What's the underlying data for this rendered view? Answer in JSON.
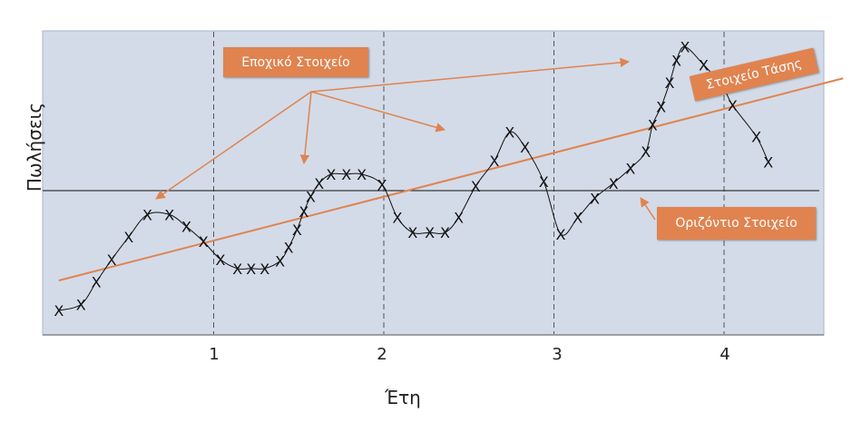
{
  "chart_data": {
    "type": "scatter",
    "xlabel": "Έτη",
    "ylabel": "Πωλήσεις",
    "x_ticks": [
      "1",
      "2",
      "3",
      "4"
    ],
    "marker": "X",
    "grid": "vertical dashed lines at each year",
    "horizontal_line": true,
    "points": [
      {
        "x": 0.09,
        "y": -0.8
      },
      {
        "x": 0.22,
        "y": -0.76
      },
      {
        "x": 0.31,
        "y": -0.61
      },
      {
        "x": 0.4,
        "y": -0.46
      },
      {
        "x": 0.5,
        "y": -0.31
      },
      {
        "x": 0.61,
        "y": -0.16
      },
      {
        "x": 0.74,
        "y": -0.16
      },
      {
        "x": 0.84,
        "y": -0.24
      },
      {
        "x": 0.94,
        "y": -0.34
      },
      {
        "x": 1.04,
        "y": -0.46
      },
      {
        "x": 1.14,
        "y": -0.52
      },
      {
        "x": 1.22,
        "y": -0.52
      },
      {
        "x": 1.3,
        "y": -0.52
      },
      {
        "x": 1.39,
        "y": -0.47
      },
      {
        "x": 1.44,
        "y": -0.38
      },
      {
        "x": 1.49,
        "y": -0.26
      },
      {
        "x": 1.53,
        "y": -0.14
      },
      {
        "x": 1.57,
        "y": -0.04
      },
      {
        "x": 1.62,
        "y": 0.05
      },
      {
        "x": 1.69,
        "y": 0.11
      },
      {
        "x": 1.78,
        "y": 0.11
      },
      {
        "x": 1.87,
        "y": 0.11
      },
      {
        "x": 1.99,
        "y": 0.04
      },
      {
        "x": 2.08,
        "y": -0.18
      },
      {
        "x": 2.17,
        "y": -0.28
      },
      {
        "x": 2.27,
        "y": -0.28
      },
      {
        "x": 2.36,
        "y": -0.28
      },
      {
        "x": 2.44,
        "y": -0.18
      },
      {
        "x": 2.54,
        "y": 0.03
      },
      {
        "x": 2.65,
        "y": 0.2
      },
      {
        "x": 2.74,
        "y": 0.39
      },
      {
        "x": 2.83,
        "y": 0.29
      },
      {
        "x": 2.94,
        "y": 0.06
      },
      {
        "x": 3.04,
        "y": -0.29
      },
      {
        "x": 3.14,
        "y": -0.18
      },
      {
        "x": 3.24,
        "y": -0.05
      },
      {
        "x": 3.35,
        "y": 0.05
      },
      {
        "x": 3.45,
        "y": 0.15
      },
      {
        "x": 3.54,
        "y": 0.26
      },
      {
        "x": 3.58,
        "y": 0.44
      },
      {
        "x": 3.63,
        "y": 0.56
      },
      {
        "x": 3.68,
        "y": 0.72
      },
      {
        "x": 3.72,
        "y": 0.87
      },
      {
        "x": 3.77,
        "y": 0.96
      },
      {
        "x": 3.88,
        "y": 0.84
      },
      {
        "x": 3.99,
        "y": 0.7
      },
      {
        "x": 4.05,
        "y": 0.57
      },
      {
        "x": 4.19,
        "y": 0.36
      },
      {
        "x": 4.26,
        "y": 0.19
      }
    ],
    "trend_line": {
      "from": [
        0.09,
        -0.6
      ],
      "to": [
        4.7,
        0.75
      ]
    },
    "annotations": [
      {
        "text": "Εποχικό Στοιχείο"
      },
      {
        "text": "Στοιχείο Τάσης"
      },
      {
        "text": "Οριζόντιο Στοιχείο"
      }
    ]
  },
  "colors": {
    "plot_background": "#d3dbe8",
    "accent": "#e0834f",
    "curve": "#111111",
    "axis_text": "#222222"
  }
}
